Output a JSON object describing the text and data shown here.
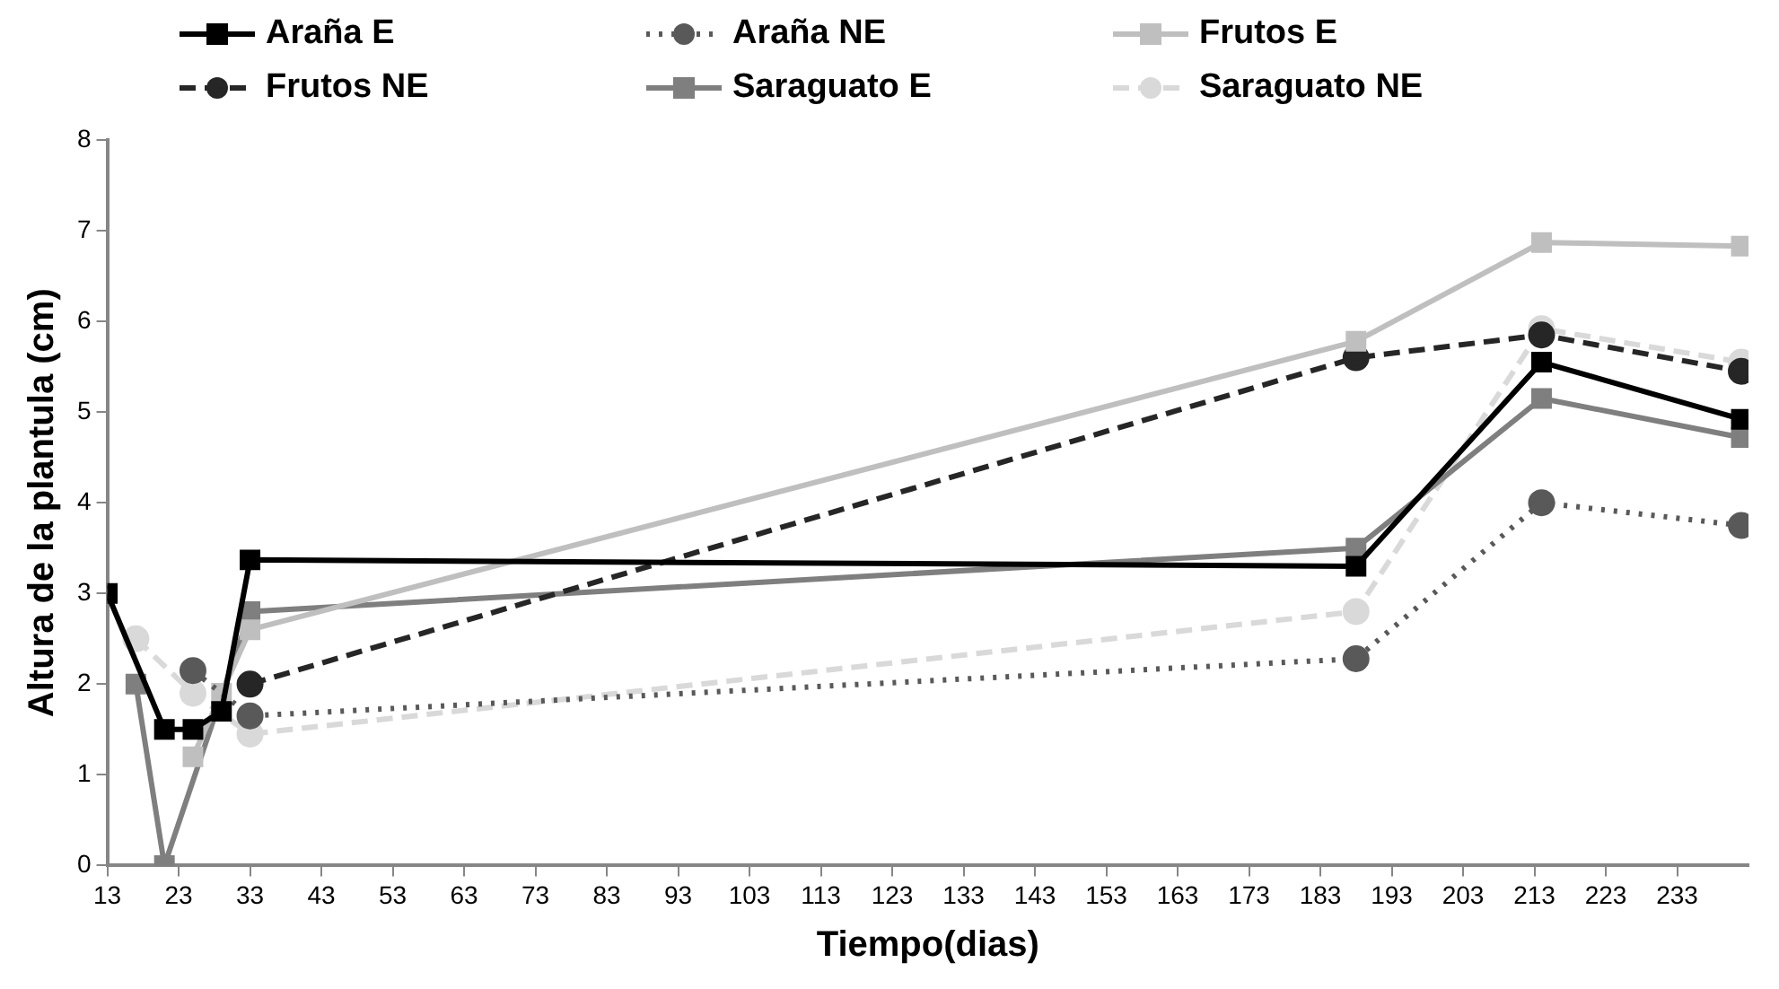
{
  "chart_data": {
    "type": "line",
    "xlabel": "Tiempo(dias)",
    "ylabel": "Altura de la plantula (cm)",
    "xlim": [
      13,
      243
    ],
    "xticks": [
      13,
      23,
      33,
      43,
      53,
      63,
      73,
      83,
      93,
      103,
      113,
      123,
      133,
      143,
      153,
      163,
      173,
      183,
      193,
      203,
      213,
      223,
      233
    ],
    "ylim": [
      0,
      8
    ],
    "yticks": [
      0,
      1,
      2,
      3,
      4,
      5,
      6,
      7,
      8
    ],
    "legend": "top",
    "series": [
      {
        "name": "Araña E",
        "color": "#000000",
        "line_style": "solid",
        "marker": "square",
        "x": [
          13,
          21,
          25,
          29,
          33,
          188,
          214,
          242
        ],
        "values": [
          3.0,
          1.5,
          1.5,
          1.7,
          3.37,
          3.3,
          5.55,
          4.92
        ]
      },
      {
        "name": "Araña NE",
        "color": "#595959",
        "line_style": "dotted",
        "marker": "circle",
        "x": [
          25,
          33,
          188,
          214,
          242
        ],
        "values": [
          2.15,
          1.65,
          2.28,
          4.0,
          3.75
        ]
      },
      {
        "name": "Frutos E",
        "color": "#bfbfbf",
        "line_style": "solid",
        "marker": "square",
        "x": [
          25,
          29,
          33,
          188,
          214,
          242
        ],
        "values": [
          1.2,
          1.9,
          2.6,
          5.78,
          6.87,
          6.83
        ]
      },
      {
        "name": "Frutos NE",
        "color": "#262626",
        "line_style": "dashed",
        "marker": "circle",
        "x": [
          33,
          188,
          214,
          242
        ],
        "values": [
          2.0,
          5.6,
          5.85,
          5.45
        ]
      },
      {
        "name": "Saraguato E",
        "color": "#7f7f7f",
        "line_style": "solid",
        "marker": "square",
        "x": [
          17,
          21,
          33,
          188,
          214,
          242
        ],
        "values": [
          2.0,
          0.0,
          2.8,
          3.5,
          5.15,
          4.72
        ]
      },
      {
        "name": "Saraguato NE",
        "color": "#d9d9d9",
        "line_style": "dashed",
        "marker": "circle",
        "x": [
          17,
          25,
          33,
          188,
          214,
          242
        ],
        "values": [
          2.5,
          1.9,
          1.45,
          2.8,
          5.92,
          5.55
        ]
      }
    ]
  }
}
